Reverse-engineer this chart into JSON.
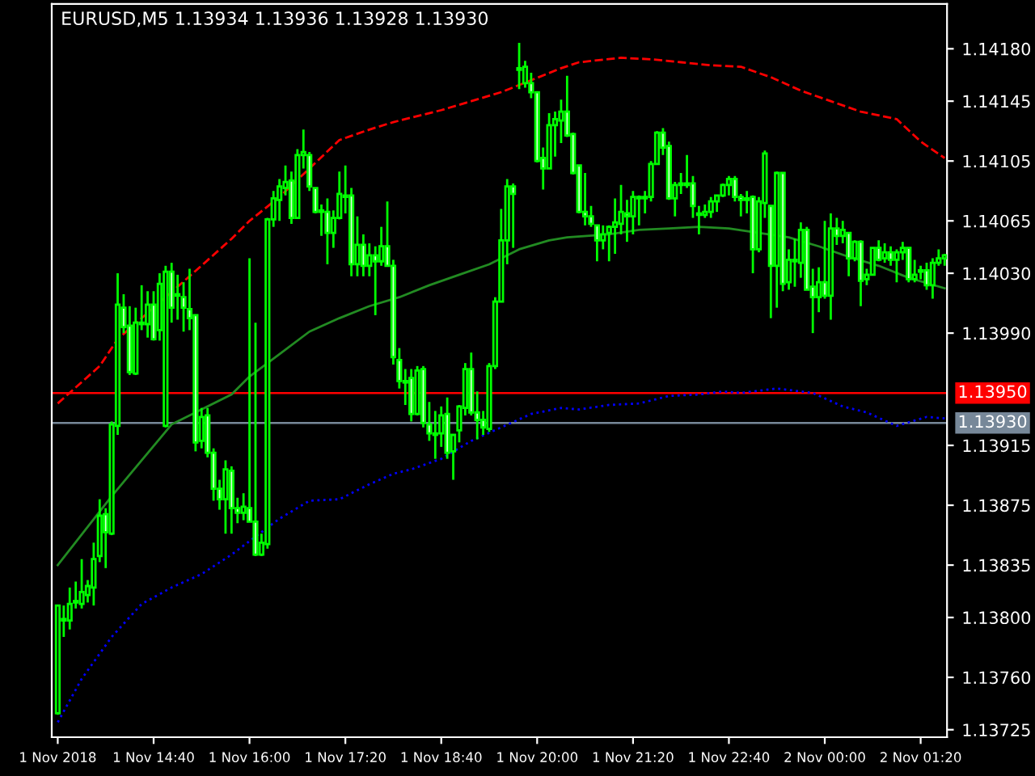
{
  "chart_data": {
    "type": "candlestick",
    "title": "EURUSD,M5 1.13934 1.13936 1.13928 1.13930",
    "xlim": [
      "2018-11-01T13:15",
      "2018-11-02T01:42"
    ],
    "xticks": [
      {
        "value": "2018-11-01T13:20",
        "label": "1 Nov 2018"
      },
      {
        "value": "2018-11-01T14:40",
        "label": "1 Nov 14:40"
      },
      {
        "value": "2018-11-01T16:00",
        "label": "1 Nov 16:00"
      },
      {
        "value": "2018-11-01T17:20",
        "label": "1 Nov 17:20"
      },
      {
        "value": "2018-11-01T18:40",
        "label": "1 Nov 18:40"
      },
      {
        "value": "2018-11-01T20:00",
        "label": "1 Nov 20:00"
      },
      {
        "value": "2018-11-01T21:20",
        "label": "1 Nov 21:20"
      },
      {
        "value": "2018-11-01T22:40",
        "label": "1 Nov 22:40"
      },
      {
        "value": "2018-11-02T00:00",
        "label": "2 Nov 00:00"
      },
      {
        "value": "2018-11-02T01:20",
        "label": "2 Nov 01:20"
      }
    ],
    "ylim": [
      1.1372,
      1.1421
    ],
    "yticks": [
      {
        "value": 1.1418,
        "label": "1.14180"
      },
      {
        "value": 1.14145,
        "label": "1.14145"
      },
      {
        "value": 1.14105,
        "label": "1.14105"
      },
      {
        "value": 1.14065,
        "label": "1.14065"
      },
      {
        "value": 1.1403,
        "label": "1.14030"
      },
      {
        "value": 1.1399,
        "label": "1.13990"
      },
      {
        "value": 1.13915,
        "label": "1.13915"
      },
      {
        "value": 1.13875,
        "label": "1.13875"
      },
      {
        "value": 1.13835,
        "label": "1.13835"
      },
      {
        "value": 1.138,
        "label": "1.13800"
      },
      {
        "value": 1.1376,
        "label": "1.13760"
      },
      {
        "value": 1.13725,
        "label": "1.13725"
      }
    ],
    "grid": false,
    "ref_lines": [
      {
        "axis": "y",
        "value": 1.1395,
        "label": "1.13950",
        "color": "#ff0000"
      },
      {
        "axis": "y",
        "value": 1.1393,
        "label": "1.13930",
        "color": "#778899"
      }
    ],
    "series": [
      {
        "type": "line",
        "color": "#228b22",
        "line_style": "solid",
        "x": [
          "2018-11-01T13:20",
          "2018-11-01T14:05",
          "2018-11-01T14:55",
          "2018-11-01T15:45",
          "2018-11-01T16:00",
          "2018-11-01T16:25",
          "2018-11-01T16:50",
          "2018-11-01T17:15",
          "2018-11-01T17:40",
          "2018-11-01T18:05",
          "2018-11-01T18:30",
          "2018-11-01T18:55",
          "2018-11-01T19:20",
          "2018-11-01T19:45",
          "2018-11-01T20:10",
          "2018-11-01T20:25",
          "2018-11-01T21:00",
          "2018-11-01T21:25",
          "2018-11-01T21:50",
          "2018-11-01T22:15",
          "2018-11-01T22:40",
          "2018-11-01T23:05",
          "2018-11-01T23:30",
          "2018-11-01T23:55",
          "2018-11-02T00:20",
          "2018-11-02T00:45",
          "2018-11-02T01:10",
          "2018-11-02T01:40"
        ],
        "values": [
          1.13835,
          1.13881,
          1.13929,
          1.13949,
          1.13961,
          1.13976,
          1.13991,
          1.14,
          1.14008,
          1.14014,
          1.14022,
          1.14029,
          1.14036,
          1.14046,
          1.14052,
          1.14054,
          1.14056,
          1.14059,
          1.1406,
          1.14061,
          1.1406,
          1.14057,
          1.14054,
          1.14048,
          1.14041,
          1.14035,
          1.14027,
          1.1402
        ]
      },
      {
        "type": "line",
        "color": "#ff0000",
        "line_style": "dashed",
        "x": [
          "2018-11-01T13:20",
          "2018-11-01T13:55",
          "2018-11-01T14:10",
          "2018-11-01T15:10",
          "2018-11-01T15:45",
          "2018-11-01T16:00",
          "2018-11-01T16:25",
          "2018-11-01T16:50",
          "2018-11-01T17:15",
          "2018-11-01T17:40",
          "2018-11-01T18:00",
          "2018-11-01T18:15",
          "2018-11-01T18:40",
          "2018-11-01T19:05",
          "2018-11-01T19:30",
          "2018-11-01T19:55",
          "2018-11-01T20:20",
          "2018-11-01T20:35",
          "2018-11-01T21:10",
          "2018-11-01T21:35",
          "2018-11-01T22:00",
          "2018-11-01T22:25",
          "2018-11-01T22:50",
          "2018-11-01T23:15",
          "2018-11-01T23:40",
          "2018-11-02T00:05",
          "2018-11-02T00:30",
          "2018-11-02T01:00",
          "2018-11-02T01:20",
          "2018-11-02T01:40"
        ],
        "values": [
          1.13943,
          1.13968,
          1.13986,
          1.14028,
          1.14053,
          1.14065,
          1.14081,
          1.141,
          1.14119,
          1.14126,
          1.14131,
          1.14134,
          1.14139,
          1.14145,
          1.14151,
          1.14159,
          1.14167,
          1.14171,
          1.14174,
          1.14173,
          1.14171,
          1.14169,
          1.14168,
          1.14161,
          1.14152,
          1.14145,
          1.14138,
          1.14133,
          1.14118,
          1.14107
        ]
      },
      {
        "type": "line",
        "color": "#0000ff",
        "line_style": "dotted",
        "x": [
          "2018-11-01T13:20",
          "2018-11-01T13:40",
          "2018-11-01T14:05",
          "2018-11-01T14:30",
          "2018-11-01T14:55",
          "2018-11-01T15:20",
          "2018-11-01T15:45",
          "2018-11-01T16:00",
          "2018-11-01T16:25",
          "2018-11-01T16:50",
          "2018-11-01T17:15",
          "2018-11-01T17:40",
          "2018-11-01T18:00",
          "2018-11-01T18:15",
          "2018-11-01T18:40",
          "2018-11-01T19:05",
          "2018-11-01T19:30",
          "2018-11-01T19:55",
          "2018-11-01T20:20",
          "2018-11-01T20:35",
          "2018-11-01T21:00",
          "2018-11-01T21:25",
          "2018-11-01T21:50",
          "2018-11-01T22:15",
          "2018-11-01T22:35",
          "2018-11-01T22:50",
          "2018-11-01T23:20",
          "2018-11-01T23:50",
          "2018-11-02T00:15",
          "2018-11-02T00:35",
          "2018-11-02T01:00",
          "2018-11-02T01:25",
          "2018-11-02T01:40"
        ],
        "values": [
          1.1373,
          1.13759,
          1.13787,
          1.13809,
          1.1382,
          1.13829,
          1.13842,
          1.13851,
          1.13866,
          1.13878,
          1.13879,
          1.13889,
          1.13896,
          1.13899,
          1.13906,
          1.13918,
          1.13927,
          1.13936,
          1.1394,
          1.13939,
          1.13942,
          1.13943,
          1.13948,
          1.13949,
          1.13951,
          1.1395,
          1.13953,
          1.1395,
          1.13941,
          1.13937,
          1.13928,
          1.13934,
          1.13933
        ]
      },
      {
        "type": "candlestick",
        "color": "#00ff00",
        "x": [
          "2018-11-01T13:20",
          "2018-11-01T13:25",
          "2018-11-01T13:30",
          "2018-11-01T13:35",
          "2018-11-01T13:40",
          "2018-11-01T13:45",
          "2018-11-01T13:50",
          "2018-11-01T13:55",
          "2018-11-01T14:00",
          "2018-11-01T14:05",
          "2018-11-01T14:10",
          "2018-11-01T14:15",
          "2018-11-01T14:20",
          "2018-11-01T14:25",
          "2018-11-01T14:30",
          "2018-11-01T14:35",
          "2018-11-01T14:40",
          "2018-11-01T14:45",
          "2018-11-01T14:50",
          "2018-11-01T14:55",
          "2018-11-01T15:00",
          "2018-11-01T15:05",
          "2018-11-01T15:10",
          "2018-11-01T15:15",
          "2018-11-01T15:20",
          "2018-11-01T15:25",
          "2018-11-01T15:30",
          "2018-11-01T15:35",
          "2018-11-01T15:40",
          "2018-11-01T15:45",
          "2018-11-01T15:50",
          "2018-11-01T15:55",
          "2018-11-01T16:00",
          "2018-11-01T16:05",
          "2018-11-01T16:10",
          "2018-11-01T16:15",
          "2018-11-01T16:20",
          "2018-11-01T16:25",
          "2018-11-01T16:30",
          "2018-11-01T16:35",
          "2018-11-01T16:40",
          "2018-11-01T16:45",
          "2018-11-01T16:50",
          "2018-11-01T16:55",
          "2018-11-01T17:00",
          "2018-11-01T17:05",
          "2018-11-01T17:10",
          "2018-11-01T17:15",
          "2018-11-01T17:20",
          "2018-11-01T17:25",
          "2018-11-01T17:30",
          "2018-11-01T17:35",
          "2018-11-01T17:40",
          "2018-11-01T17:45",
          "2018-11-01T17:50",
          "2018-11-01T17:55",
          "2018-11-01T18:00",
          "2018-11-01T18:05",
          "2018-11-01T18:10",
          "2018-11-01T18:15",
          "2018-11-01T18:20",
          "2018-11-01T18:25",
          "2018-11-01T18:30",
          "2018-11-01T18:35",
          "2018-11-01T18:40",
          "2018-11-01T18:45",
          "2018-11-01T18:50",
          "2018-11-01T18:55",
          "2018-11-01T19:00",
          "2018-11-01T19:05",
          "2018-11-01T19:10",
          "2018-11-01T19:15",
          "2018-11-01T19:20",
          "2018-11-01T19:25",
          "2018-11-01T19:30",
          "2018-11-01T19:35",
          "2018-11-01T19:40",
          "2018-11-01T19:45",
          "2018-11-01T19:50",
          "2018-11-01T19:55",
          "2018-11-01T20:00",
          "2018-11-01T20:05",
          "2018-11-01T20:10",
          "2018-11-01T20:15",
          "2018-11-01T20:20",
          "2018-11-01T20:25",
          "2018-11-01T20:30",
          "2018-11-01T20:35",
          "2018-11-01T20:40",
          "2018-11-01T20:45",
          "2018-11-01T20:50",
          "2018-11-01T20:55",
          "2018-11-01T21:00",
          "2018-11-01T21:05",
          "2018-11-01T21:10",
          "2018-11-01T21:15",
          "2018-11-01T21:20",
          "2018-11-01T21:25",
          "2018-11-01T21:30",
          "2018-11-01T21:35",
          "2018-11-01T21:40",
          "2018-11-01T21:45",
          "2018-11-01T21:50",
          "2018-11-01T21:55",
          "2018-11-01T22:00",
          "2018-11-01T22:05",
          "2018-11-01T22:10",
          "2018-11-01T22:15",
          "2018-11-01T22:20",
          "2018-11-01T22:25",
          "2018-11-01T22:30",
          "2018-11-01T22:35",
          "2018-11-01T22:40",
          "2018-11-01T22:45",
          "2018-11-01T22:50",
          "2018-11-01T22:55",
          "2018-11-01T23:00",
          "2018-11-01T23:05",
          "2018-11-01T23:10",
          "2018-11-01T23:15",
          "2018-11-01T23:20",
          "2018-11-01T23:25",
          "2018-11-01T23:30",
          "2018-11-01T23:35",
          "2018-11-01T23:40",
          "2018-11-01T23:45",
          "2018-11-01T23:50",
          "2018-11-01T23:55",
          "2018-11-02T00:00",
          "2018-11-02T00:05",
          "2018-11-02T00:10",
          "2018-11-02T00:15",
          "2018-11-02T00:20",
          "2018-11-02T00:25",
          "2018-11-02T00:30",
          "2018-11-02T00:35",
          "2018-11-02T00:40",
          "2018-11-02T00:45",
          "2018-11-02T00:50",
          "2018-11-02T00:55",
          "2018-11-02T01:00",
          "2018-11-02T01:05",
          "2018-11-02T01:10",
          "2018-11-02T01:15",
          "2018-11-02T01:20",
          "2018-11-02T01:25",
          "2018-11-02T01:30",
          "2018-11-02T01:35",
          "2018-11-02T01:40"
        ],
        "ohlc": [
          [
            1.13736,
            1.13808,
            1.13735,
            1.13808
          ],
          [
            1.13799,
            1.13808,
            1.13787,
            1.13798
          ],
          [
            1.13798,
            1.1382,
            1.13792,
            1.13809
          ],
          [
            1.1381,
            1.13824,
            1.13806,
            1.13811
          ],
          [
            1.13809,
            1.13839,
            1.13806,
            1.13817
          ],
          [
            1.13815,
            1.13825,
            1.1381,
            1.13821
          ],
          [
            1.1382,
            1.1385,
            1.13808,
            1.13839
          ],
          [
            1.13841,
            1.13879,
            1.13837,
            1.13868
          ],
          [
            1.13869,
            1.13873,
            1.13833,
            1.13857
          ],
          [
            1.13856,
            1.13931,
            1.13855,
            1.13929
          ],
          [
            1.13928,
            1.1403,
            1.13922,
            1.14009
          ],
          [
            1.14007,
            1.14016,
            1.1399,
            1.13994
          ],
          [
            1.13995,
            1.14008,
            1.13962,
            1.13964
          ],
          [
            1.13963,
            1.14007,
            1.13962,
            1.13997
          ],
          [
            1.13996,
            1.14022,
            1.13992,
            1.13997
          ],
          [
            1.13996,
            1.14018,
            1.13987,
            1.14009
          ],
          [
            1.14009,
            1.14018,
            1.13985,
            1.13986
          ],
          [
            1.13992,
            1.1403,
            1.13985,
            1.14023
          ],
          [
            1.13928,
            1.14035,
            1.13927,
            1.14031
          ],
          [
            1.14031,
            1.14037,
            1.13997,
            1.14007
          ],
          [
            1.14016,
            1.14029,
            1.13999,
            1.14015
          ],
          [
            1.14014,
            1.14024,
            1.13991,
            1.14007
          ],
          [
            1.14006,
            1.14033,
            1.13992,
            1.14
          ],
          [
            1.14002,
            1.14002,
            1.13911,
            1.13917
          ],
          [
            1.13918,
            1.1394,
            1.13913,
            1.13934
          ],
          [
            1.13935,
            1.1394,
            1.13907,
            1.1391
          ],
          [
            1.1391,
            1.13913,
            1.13878,
            1.13886
          ],
          [
            1.13886,
            1.13892,
            1.13872,
            1.13879
          ],
          [
            1.13879,
            1.13905,
            1.13856,
            1.13899
          ],
          [
            1.13898,
            1.13901,
            1.13856,
            1.13873
          ],
          [
            1.13873,
            1.1388,
            1.13863,
            1.1387
          ],
          [
            1.1387,
            1.13883,
            1.13865,
            1.13874
          ],
          [
            1.13873,
            1.1404,
            1.13864,
            1.13864
          ],
          [
            1.13864,
            1.13997,
            1.13841,
            1.13842
          ],
          [
            1.13842,
            1.13856,
            1.13841,
            1.1385
          ],
          [
            1.13849,
            1.14067,
            1.13846,
            1.14066
          ],
          [
            1.14066,
            1.14085,
            1.14061,
            1.1408
          ],
          [
            1.14079,
            1.14093,
            1.14065,
            1.14088
          ],
          [
            1.14087,
            1.14102,
            1.14082,
            1.14091
          ],
          [
            1.14092,
            1.14098,
            1.14063,
            1.14067
          ],
          [
            1.14067,
            1.14113,
            1.14067,
            1.14109
          ],
          [
            1.14109,
            1.14126,
            1.141,
            1.14111
          ],
          [
            1.14109,
            1.14111,
            1.14085,
            1.14088
          ],
          [
            1.14087,
            1.14087,
            1.1407,
            1.14071
          ],
          [
            1.14071,
            1.14076,
            1.14055,
            1.14072
          ],
          [
            1.14071,
            1.1408,
            1.14036,
            1.14057
          ],
          [
            1.14057,
            1.14072,
            1.14047,
            1.14067
          ],
          [
            1.14067,
            1.14098,
            1.14066,
            1.14083
          ],
          [
            1.14082,
            1.14102,
            1.1407,
            1.14081
          ],
          [
            1.14082,
            1.14087,
            1.14028,
            1.14036
          ],
          [
            1.14036,
            1.14068,
            1.14028,
            1.14049
          ],
          [
            1.14049,
            1.14056,
            1.14028,
            1.14035
          ],
          [
            1.14035,
            1.1405,
            1.14028,
            1.14042
          ],
          [
            1.14042,
            1.14048,
            1.14002,
            1.14038
          ],
          [
            1.14038,
            1.14061,
            1.14035,
            1.14048
          ],
          [
            1.14048,
            1.14078,
            1.14035,
            1.14035
          ],
          [
            1.14035,
            1.14039,
            1.13969,
            1.13974
          ],
          [
            1.13972,
            1.1398,
            1.13953,
            1.13958
          ],
          [
            1.13958,
            1.13966,
            1.13942,
            1.13957
          ],
          [
            1.1396,
            1.13966,
            1.13931,
            1.13936
          ],
          [
            1.13936,
            1.13968,
            1.13935,
            1.13965
          ],
          [
            1.13966,
            1.13968,
            1.13927,
            1.1393
          ],
          [
            1.13929,
            1.13944,
            1.13918,
            1.13923
          ],
          [
            1.13923,
            1.13938,
            1.13906,
            1.13922
          ],
          [
            1.13923,
            1.13941,
            1.13914,
            1.13935
          ],
          [
            1.13936,
            1.13947,
            1.13906,
            1.1391
          ],
          [
            1.13911,
            1.13922,
            1.13892,
            1.13922
          ],
          [
            1.13925,
            1.13942,
            1.13917,
            1.13941
          ],
          [
            1.1394,
            1.1397,
            1.13935,
            1.13966
          ],
          [
            1.13966,
            1.13977,
            1.13935,
            1.13937
          ],
          [
            1.13937,
            1.13951,
            1.13919,
            1.13932
          ],
          [
            1.13932,
            1.13938,
            1.13922,
            1.13927
          ],
          [
            1.13926,
            1.1397,
            1.13924,
            1.13968
          ],
          [
            1.13968,
            1.14014,
            1.13966,
            1.14011
          ],
          [
            1.14011,
            1.14073,
            1.14011,
            1.14052
          ],
          [
            1.14052,
            1.14093,
            1.14036,
            1.14088
          ],
          [
            1.14088,
            1.1409,
            1.14047,
            1.14083
          ],
          [
            1.14166,
            1.14184,
            1.14153,
            1.14167
          ],
          [
            1.14157,
            1.14172,
            1.14154,
            1.14168
          ],
          [
            1.14157,
            1.14164,
            1.14147,
            1.14151
          ],
          [
            1.14151,
            1.14151,
            1.14104,
            1.14105
          ],
          [
            1.14107,
            1.14114,
            1.14086,
            1.141
          ],
          [
            1.141,
            1.14137,
            1.141,
            1.14129
          ],
          [
            1.14129,
            1.14138,
            1.14108,
            1.14133
          ],
          [
            1.14132,
            1.14146,
            1.14117,
            1.14138
          ],
          [
            1.14138,
            1.14162,
            1.14121,
            1.14122
          ],
          [
            1.14123,
            1.14124,
            1.14096,
            1.14097
          ],
          [
            1.14102,
            1.14102,
            1.1407,
            1.14071
          ],
          [
            1.14071,
            1.14097,
            1.14062,
            1.14068
          ],
          [
            1.14068,
            1.14075,
            1.14061,
            1.14063
          ],
          [
            1.14062,
            1.14062,
            1.14038,
            1.14052
          ],
          [
            1.14052,
            1.14062,
            1.14046,
            1.14056
          ],
          [
            1.14057,
            1.14062,
            1.14038,
            1.14061
          ],
          [
            1.14061,
            1.1408,
            1.14043,
            1.14064
          ],
          [
            1.14063,
            1.14089,
            1.14056,
            1.14071
          ],
          [
            1.1407,
            1.14079,
            1.14051,
            1.14068
          ],
          [
            1.14068,
            1.14085,
            1.14056,
            1.14081
          ],
          [
            1.14081,
            1.14082,
            1.14062,
            1.1408
          ],
          [
            1.1408,
            1.14085,
            1.1407,
            1.14081
          ],
          [
            1.14081,
            1.14105,
            1.14078,
            1.14103
          ],
          [
            1.14103,
            1.14125,
            1.14103,
            1.14124
          ],
          [
            1.14124,
            1.14127,
            1.14109,
            1.14114
          ],
          [
            1.14115,
            1.14118,
            1.14079,
            1.1408
          ],
          [
            1.1408,
            1.14091,
            1.14068,
            1.14089
          ],
          [
            1.14089,
            1.14097,
            1.14083,
            1.1409
          ],
          [
            1.1409,
            1.14109,
            1.14087,
            1.14089
          ],
          [
            1.1409,
            1.14095,
            1.14067,
            1.14075
          ],
          [
            1.1407,
            1.14075,
            1.14056,
            1.14069
          ],
          [
            1.14069,
            1.14076,
            1.14067,
            1.14071
          ],
          [
            1.14071,
            1.14081,
            1.14067,
            1.14078
          ],
          [
            1.14078,
            1.14082,
            1.14071,
            1.14082
          ],
          [
            1.14082,
            1.1409,
            1.14081,
            1.14089
          ],
          [
            1.14089,
            1.14095,
            1.14082,
            1.14093
          ],
          [
            1.14093,
            1.14095,
            1.14078,
            1.14081
          ],
          [
            1.14081,
            1.14083,
            1.14068,
            1.14079
          ],
          [
            1.14079,
            1.14085,
            1.1407,
            1.1408
          ],
          [
            1.14081,
            1.14082,
            1.1403,
            1.14046
          ],
          [
            1.14046,
            1.14081,
            1.14044,
            1.14078
          ],
          [
            1.14077,
            1.14112,
            1.14067,
            1.1411
          ],
          [
            1.14075,
            1.14075,
            1.14,
            1.14035
          ],
          [
            1.14035,
            1.14098,
            1.14007,
            1.14097
          ],
          [
            1.14097,
            1.14097,
            1.14018,
            1.14023
          ],
          [
            1.14024,
            1.14046,
            1.14019,
            1.14039
          ],
          [
            1.14038,
            1.14053,
            1.14021,
            1.14039
          ],
          [
            1.14037,
            1.14064,
            1.14027,
            1.14059
          ],
          [
            1.14059,
            1.14061,
            1.14019,
            1.14019
          ],
          [
            1.14021,
            1.14033,
            1.1399,
            1.14014
          ],
          [
            1.14014,
            1.14034,
            1.14004,
            1.14024
          ],
          [
            1.14024,
            1.14065,
            1.14013,
            1.14015
          ],
          [
            1.14015,
            1.1407,
            1.13999,
            1.1406
          ],
          [
            1.1406,
            1.14067,
            1.14049,
            1.14055
          ],
          [
            1.14055,
            1.14065,
            1.1405,
            1.14059
          ],
          [
            1.14057,
            1.14057,
            1.14028,
            1.1404
          ],
          [
            1.1404,
            1.14052,
            1.14038,
            1.14051
          ],
          [
            1.14051,
            1.14052,
            1.14008,
            1.14025
          ],
          [
            1.14026,
            1.14033,
            1.14022,
            1.14029
          ],
          [
            1.14029,
            1.14047,
            1.14029,
            1.14047
          ],
          [
            1.14047,
            1.14052,
            1.14038,
            1.14039
          ],
          [
            1.1404,
            1.1405,
            1.14037,
            1.14044
          ],
          [
            1.14044,
            1.14048,
            1.14035,
            1.14039
          ],
          [
            1.14039,
            1.14046,
            1.14024,
            1.14044
          ],
          [
            1.14044,
            1.14051,
            1.14039,
            1.14047
          ],
          [
            1.14047,
            1.14047,
            1.14024,
            1.14026
          ],
          [
            1.14026,
            1.14039,
            1.14024,
            1.14029
          ],
          [
            1.14031,
            1.14035,
            1.14026,
            1.14032
          ],
          [
            1.14032,
            1.14037,
            1.14019,
            1.14022
          ],
          [
            1.14022,
            1.1404,
            1.14013,
            1.14037
          ],
          [
            1.14037,
            1.14046,
            1.14035,
            1.1404
          ],
          [
            1.1404,
            1.14043,
            1.14035,
            1.14042
          ]
        ]
      }
    ]
  }
}
